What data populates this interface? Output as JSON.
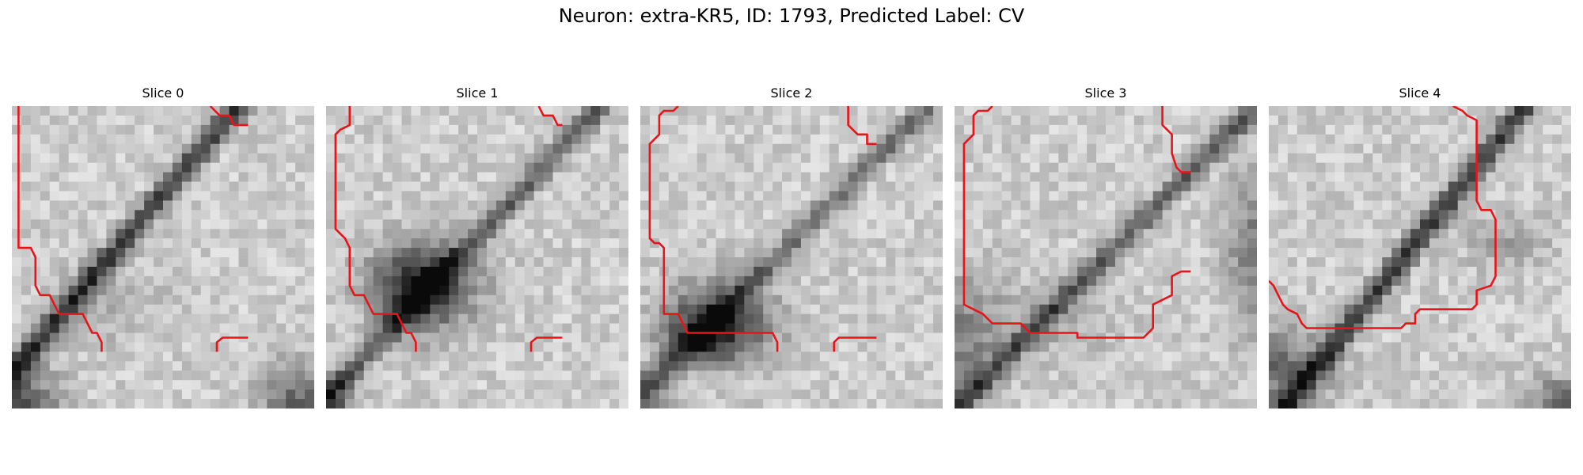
{
  "figure": {
    "title": "Neuron: extra-KR5, ID: 1793, Predicted Label: CV",
    "panels": [
      {
        "label": "Slice 0",
        "cmap": "gray",
        "contour_color": "#e8141a"
      },
      {
        "label": "Slice 1",
        "cmap": "gray",
        "contour_color": "#e8141a"
      },
      {
        "label": "Slice 2",
        "cmap": "gray",
        "contour_color": "#e8141a"
      },
      {
        "label": "Slice 3",
        "cmap": "gray",
        "contour_color": "#e8141a"
      },
      {
        "label": "Slice 4",
        "cmap": "gray",
        "contour_color": "#e8141a"
      }
    ]
  }
}
